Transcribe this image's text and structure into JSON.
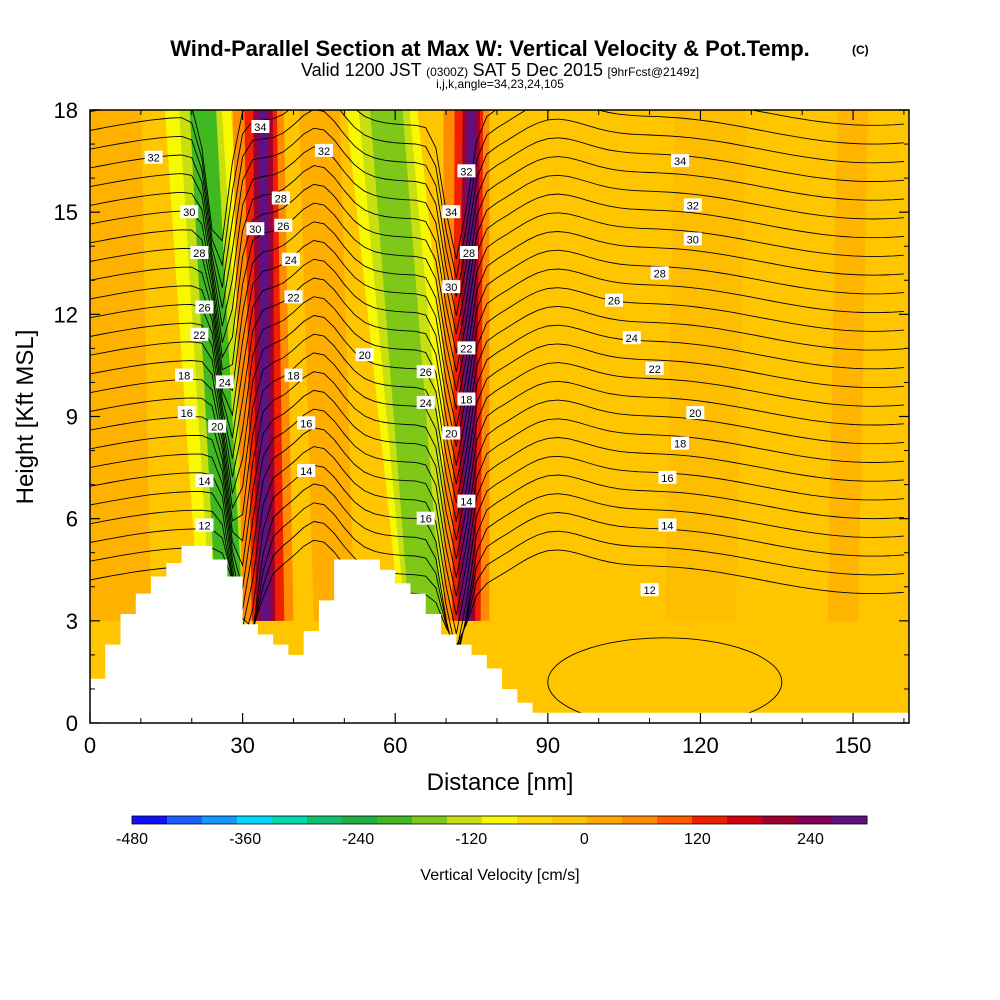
{
  "title": "Wind-Parallel Section at Max W: Vertical Velocity & Pot.Temp.",
  "title_mark": "(C)",
  "subtitle": {
    "valid": "Valid 1200 JST",
    "utc": "(0300Z)",
    "date": "SAT 5 Dec 2015",
    "fcst": "[9hrFcst@2149z]"
  },
  "index_line": "i,j,k,angle=34,23,24,105",
  "chart_data": {
    "type": "heatmap",
    "xlabel": "Distance [nm]",
    "ylabel": "Height [Kft MSL]",
    "xlim": [
      0,
      161
    ],
    "ylim": [
      0,
      18
    ],
    "xticks": [
      0,
      30,
      60,
      90,
      120,
      150
    ],
    "yticks": [
      0,
      3,
      6,
      9,
      12,
      15,
      18
    ],
    "colorbar": {
      "label": "Vertical Velocity [cm/s]",
      "ticks": [
        -480,
        -360,
        -240,
        -120,
        0,
        120,
        240
      ],
      "range": [
        -480,
        300
      ],
      "colors": [
        "#1010ff",
        "#1a60ff",
        "#0f9aff",
        "#00d8ff",
        "#00d8b0",
        "#10c070",
        "#20b040",
        "#40b820",
        "#80c818",
        "#c8e010",
        "#f8f800",
        "#ffd800",
        "#ffc400",
        "#ffa800",
        "#ff8c00",
        "#ff5a00",
        "#f02000",
        "#d00010",
        "#a00030",
        "#800060",
        "#601080"
      ]
    },
    "terrain_profile": [
      [
        0,
        1.3
      ],
      [
        3,
        2.3
      ],
      [
        6,
        3.2
      ],
      [
        9,
        3.8
      ],
      [
        12,
        4.3
      ],
      [
        15,
        4.7
      ],
      [
        18,
        5.2
      ],
      [
        21,
        5.2
      ],
      [
        24,
        4.8
      ],
      [
        27,
        4.3
      ],
      [
        30,
        2.9
      ],
      [
        33,
        2.6
      ],
      [
        36,
        2.3
      ],
      [
        39,
        2.0
      ],
      [
        42,
        2.7
      ],
      [
        45,
        3.6
      ],
      [
        48,
        4.8
      ],
      [
        51,
        4.8
      ],
      [
        54,
        4.8
      ],
      [
        57,
        4.5
      ],
      [
        60,
        4.1
      ],
      [
        63,
        3.8
      ],
      [
        66,
        3.2
      ],
      [
        69,
        2.6
      ],
      [
        72,
        2.3
      ],
      [
        75,
        2.0
      ],
      [
        78,
        1.6
      ],
      [
        81,
        1.0
      ],
      [
        84,
        0.6
      ],
      [
        87,
        0.3
      ],
      [
        161,
        0.3
      ]
    ],
    "theta_contour_labels": [
      {
        "value": "12",
        "x": 22.5,
        "y": 5.8
      },
      {
        "value": "14",
        "x": 22.5,
        "y": 7.1
      },
      {
        "value": "16",
        "x": 19.0,
        "y": 9.1
      },
      {
        "value": "18",
        "x": 18.5,
        "y": 10.2
      },
      {
        "value": "20",
        "x": 25.0,
        "y": 8.7
      },
      {
        "value": "22",
        "x": 21.5,
        "y": 11.4
      },
      {
        "value": "24",
        "x": 26.5,
        "y": 10.0
      },
      {
        "value": "26",
        "x": 22.5,
        "y": 12.2
      },
      {
        "value": "28",
        "x": 21.5,
        "y": 13.8
      },
      {
        "value": "30",
        "x": 19.5,
        "y": 15.0
      },
      {
        "value": "32",
        "x": 12.5,
        "y": 16.6
      },
      {
        "value": "34",
        "x": 33.5,
        "y": 17.5
      },
      {
        "value": "30",
        "x": 32.5,
        "y": 14.5
      },
      {
        "value": "28",
        "x": 37.5,
        "y": 15.4
      },
      {
        "value": "26",
        "x": 38.0,
        "y": 14.6
      },
      {
        "value": "24",
        "x": 39.5,
        "y": 13.6
      },
      {
        "value": "22",
        "x": 40.0,
        "y": 12.5
      },
      {
        "value": "18",
        "x": 40.0,
        "y": 10.2
      },
      {
        "value": "16",
        "x": 42.5,
        "y": 8.8
      },
      {
        "value": "14",
        "x": 42.5,
        "y": 7.4
      },
      {
        "value": "32",
        "x": 46.0,
        "y": 16.8
      },
      {
        "value": "20",
        "x": 54.0,
        "y": 10.8
      },
      {
        "value": "26",
        "x": 66.0,
        "y": 10.3
      },
      {
        "value": "24",
        "x": 66.0,
        "y": 9.4
      },
      {
        "value": "16",
        "x": 66.0,
        "y": 6.0
      },
      {
        "value": "34",
        "x": 71.0,
        "y": 15.0
      },
      {
        "value": "32",
        "x": 74.0,
        "y": 16.2
      },
      {
        "value": "30",
        "x": 71.0,
        "y": 12.8
      },
      {
        "value": "28",
        "x": 74.5,
        "y": 13.8
      },
      {
        "value": "22",
        "x": 74.0,
        "y": 11.0
      },
      {
        "value": "18",
        "x": 74.0,
        "y": 9.5
      },
      {
        "value": "20",
        "x": 71.0,
        "y": 8.5
      },
      {
        "value": "14",
        "x": 74.0,
        "y": 6.5
      },
      {
        "value": "34",
        "x": 116.0,
        "y": 16.5
      },
      {
        "value": "32",
        "x": 118.5,
        "y": 15.2
      },
      {
        "value": "30",
        "x": 118.5,
        "y": 14.2
      },
      {
        "value": "28",
        "x": 112.0,
        "y": 13.2
      },
      {
        "value": "26",
        "x": 103.0,
        "y": 12.4
      },
      {
        "value": "24",
        "x": 106.5,
        "y": 11.3
      },
      {
        "value": "22",
        "x": 111.0,
        "y": 10.4
      },
      {
        "value": "20",
        "x": 119.0,
        "y": 9.1
      },
      {
        "value": "18",
        "x": 116.0,
        "y": 8.2
      },
      {
        "value": "16",
        "x": 113.5,
        "y": 7.2
      },
      {
        "value": "14",
        "x": 113.5,
        "y": 5.8
      },
      {
        "value": "12",
        "x": 110.0,
        "y": 3.9
      }
    ]
  }
}
